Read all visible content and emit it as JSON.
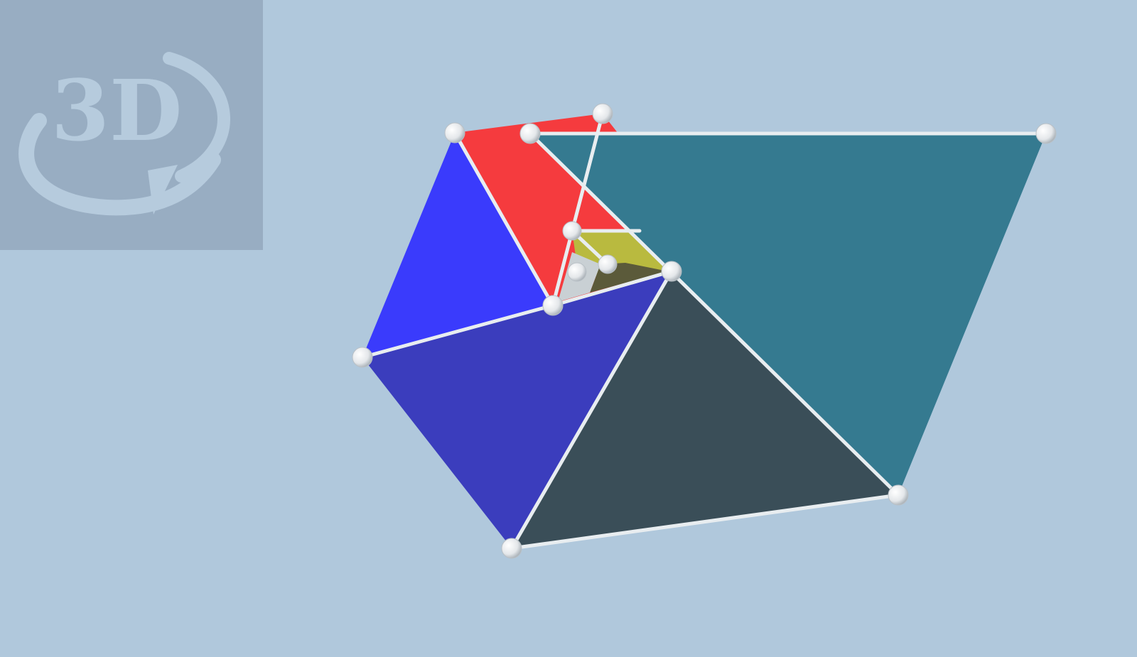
{
  "view": {
    "background_color": "#b0c8dc",
    "mode_badge": {
      "label": "3D",
      "icon": "rotate-3d-icon",
      "panel_color": "#98adc2",
      "glyph_color": "#b6cbdd"
    }
  },
  "solid": {
    "face_colors": {
      "red": "#f53b3e",
      "blue_left": "#3a3bfc",
      "blue_front": "#3b3dbd",
      "teal": "#357a90",
      "dark_slate": "#3a4e58",
      "yellow": "#b9ba3f",
      "olive": "#5b5a3a",
      "light_grey": "#c9d0d4"
    },
    "edge_color": "#e8edf0",
    "vertex_color": "#f2f2f2"
  }
}
